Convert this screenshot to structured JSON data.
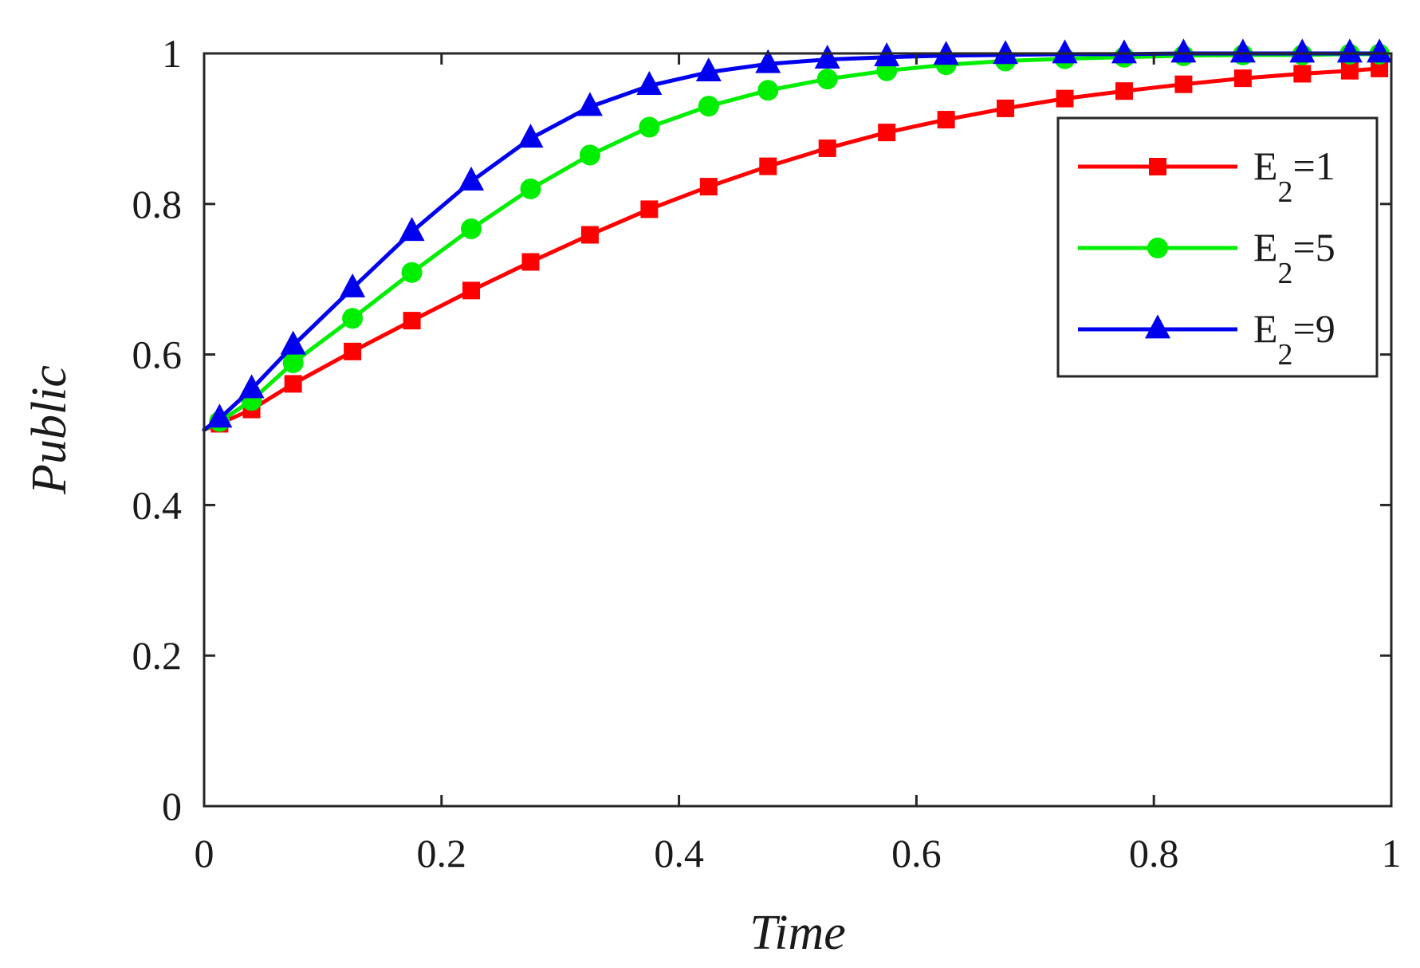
{
  "chart_data": {
    "type": "line",
    "title": "",
    "xlabel": "Time",
    "ylabel": "Public",
    "xlim": [
      0,
      1
    ],
    "ylim": [
      0,
      1
    ],
    "xticks": [
      0,
      0.2,
      0.4,
      0.6,
      0.8,
      1
    ],
    "yticks": [
      0,
      0.2,
      0.4,
      0.6,
      0.8,
      1
    ],
    "xtick_labels": [
      "0",
      "0.2",
      "0.4",
      "0.6",
      "0.8",
      "1"
    ],
    "ytick_labels": [
      "0",
      "0.2",
      "0.4",
      "0.6",
      "0.8",
      "1"
    ],
    "legend_position": "top-right",
    "series": [
      {
        "name": "E2=1",
        "label_main": "E",
        "label_sub": "2",
        "label_rest": "=1",
        "color": "#ff0000",
        "marker": "square",
        "x": [
          0,
          0.013,
          0.04,
          0.075,
          0.125,
          0.175,
          0.225,
          0.275,
          0.325,
          0.375,
          0.425,
          0.475,
          0.525,
          0.575,
          0.625,
          0.675,
          0.725,
          0.775,
          0.825,
          0.875,
          0.925,
          0.965,
          0.99
        ],
        "y": [
          0.5,
          0.508,
          0.527,
          0.561,
          0.604,
          0.645,
          0.685,
          0.723,
          0.759,
          0.793,
          0.823,
          0.85,
          0.874,
          0.895,
          0.912,
          0.927,
          0.94,
          0.95,
          0.959,
          0.967,
          0.973,
          0.977,
          0.98
        ]
      },
      {
        "name": "E2=5",
        "label_main": "E",
        "label_sub": "2",
        "label_rest": "=5",
        "color": "#00ee00",
        "marker": "circle",
        "x": [
          0,
          0.013,
          0.04,
          0.075,
          0.125,
          0.175,
          0.225,
          0.275,
          0.325,
          0.375,
          0.425,
          0.475,
          0.525,
          0.575,
          0.625,
          0.675,
          0.725,
          0.775,
          0.825,
          0.875,
          0.925,
          0.965,
          0.99
        ],
        "y": [
          0.5,
          0.511,
          0.539,
          0.589,
          0.648,
          0.709,
          0.767,
          0.82,
          0.865,
          0.902,
          0.93,
          0.951,
          0.966,
          0.977,
          0.985,
          0.99,
          0.993,
          0.995,
          0.997,
          0.998,
          0.998,
          0.999,
          0.999
        ]
      },
      {
        "name": "E2=9",
        "label_main": "E",
        "label_sub": "2",
        "label_rest": "=9",
        "color": "#0000ee",
        "marker": "triangle",
        "x": [
          0,
          0.013,
          0.04,
          0.075,
          0.125,
          0.175,
          0.225,
          0.275,
          0.325,
          0.375,
          0.425,
          0.475,
          0.525,
          0.575,
          0.625,
          0.675,
          0.725,
          0.775,
          0.825,
          0.875,
          0.925,
          0.965,
          0.99
        ],
        "y": [
          0.5,
          0.515,
          0.554,
          0.612,
          0.688,
          0.763,
          0.83,
          0.887,
          0.929,
          0.957,
          0.975,
          0.986,
          0.992,
          0.995,
          0.997,
          0.998,
          0.999,
          0.999,
          1.0,
          1.0,
          1.0,
          1.0,
          1.0
        ]
      }
    ]
  }
}
